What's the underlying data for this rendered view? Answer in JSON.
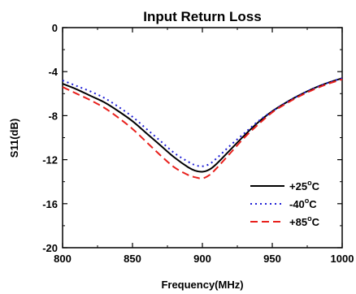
{
  "chart_data": {
    "type": "line",
    "title": "Input Return Loss",
    "xlabel": "Frequency(MHz)",
    "ylabel": "S11(dB)",
    "xlim": [
      800,
      1000
    ],
    "ylim": [
      -20,
      0
    ],
    "xticks": [
      800,
      850,
      900,
      950,
      1000
    ],
    "yticks": [
      0,
      -4,
      -8,
      -12,
      -16,
      -20
    ],
    "legend_position": "right",
    "grid": false,
    "series": [
      {
        "name": "+25°C",
        "label_main": "+25",
        "label_sup": "o",
        "label_unit": "C",
        "color": "#000000",
        "dash": "solid",
        "x": [
          800,
          810,
          820,
          830,
          840,
          850,
          860,
          870,
          880,
          890,
          895,
          900,
          905,
          910,
          920,
          930,
          940,
          950,
          960,
          970,
          980,
          990,
          1000
        ],
        "y": [
          -5.1,
          -5.6,
          -6.2,
          -6.8,
          -7.6,
          -8.5,
          -9.6,
          -10.7,
          -11.8,
          -12.7,
          -13.0,
          -13.1,
          -12.9,
          -12.4,
          -11.1,
          -9.8,
          -8.6,
          -7.6,
          -6.8,
          -6.1,
          -5.5,
          -5.0,
          -4.6
        ]
      },
      {
        "name": "-40°C",
        "label_main": "-40",
        "label_sup": "o",
        "label_unit": "C",
        "color": "#1f1fd6",
        "dash": "dotted",
        "x": [
          800,
          810,
          820,
          830,
          840,
          850,
          860,
          870,
          880,
          890,
          895,
          900,
          905,
          910,
          920,
          930,
          940,
          950,
          960,
          970,
          980,
          990,
          1000
        ],
        "y": [
          -4.8,
          -5.3,
          -5.8,
          -6.4,
          -7.2,
          -8.1,
          -9.2,
          -10.3,
          -11.4,
          -12.2,
          -12.5,
          -12.6,
          -12.4,
          -11.9,
          -10.7,
          -9.6,
          -8.5,
          -7.6,
          -6.8,
          -6.1,
          -5.5,
          -5.0,
          -4.6
        ]
      },
      {
        "name": "+85°C",
        "label_main": "+85",
        "label_sup": "o",
        "label_unit": "C",
        "color": "#e8201c",
        "dash": "dashed",
        "x": [
          800,
          810,
          820,
          830,
          840,
          850,
          860,
          870,
          880,
          890,
          895,
          900,
          905,
          910,
          920,
          930,
          940,
          950,
          960,
          970,
          980,
          990,
          1000
        ],
        "y": [
          -5.4,
          -6.0,
          -6.6,
          -7.3,
          -8.2,
          -9.2,
          -10.4,
          -11.6,
          -12.7,
          -13.4,
          -13.6,
          -13.7,
          -13.4,
          -12.8,
          -11.4,
          -10.0,
          -8.8,
          -7.7,
          -6.9,
          -6.2,
          -5.6,
          -5.1,
          -4.7
        ]
      }
    ]
  }
}
